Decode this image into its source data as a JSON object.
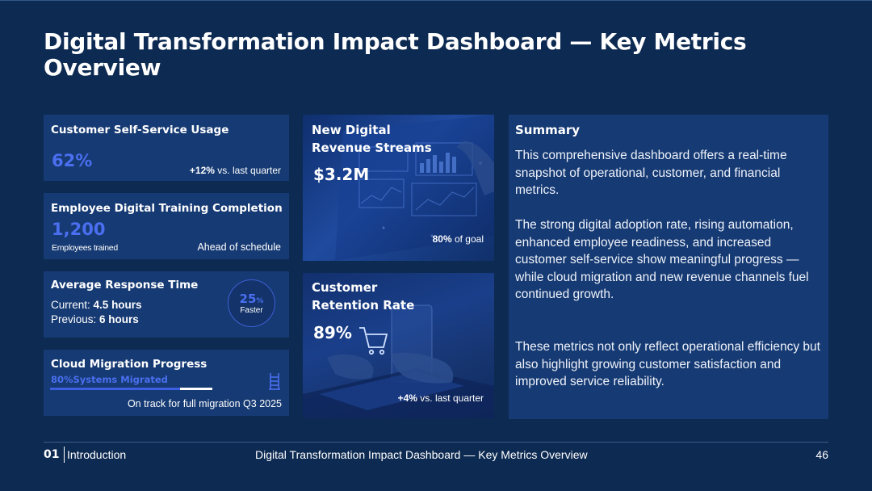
{
  "slide": {
    "title": "Digital Transformation Impact Dashboard — Key Metrics Overview"
  },
  "self_service": {
    "title": "Customer Self-Service Usage",
    "value": "62%",
    "delta_value": "+12%",
    "delta_label": "vs. last quarter"
  },
  "training": {
    "title": "Employee Digital Training Completion",
    "value": "1,200",
    "sub_label": "Employees trained",
    "status": "Ahead of schedule"
  },
  "response": {
    "title": "Average Response Time",
    "current_label": "Current:",
    "current_value": "4.5 hours",
    "previous_label": "Previous:",
    "previous_value": "6 hours",
    "improvement_number": "25",
    "improvement_unit": "%",
    "improvement_label": "Faster"
  },
  "migration": {
    "title": "Cloud Migration Progress",
    "status_label": "80%Systems Migrated",
    "progress_percent": 80,
    "note": "On track for full migration Q3 2025",
    "icon": "ladder-icon"
  },
  "revenue": {
    "title_line1": "New Digital",
    "title_line2": "Revenue Streams",
    "value": "$3.2M",
    "goal_value": "80%",
    "goal_label": "of goal"
  },
  "retention": {
    "title_line1": "Customer",
    "title_line2": "Retention Rate",
    "value": "89%",
    "delta_value": "+4%",
    "delta_label": "vs. last quarter"
  },
  "summary": {
    "title": "Summary",
    "paragraph1": "This comprehensive dashboard offers a real-time snapshot of operational, customer, and financial metrics.",
    "paragraph2": "The strong digital adoption rate, rising automation, enhanced employee readiness, and increased customer self-service show meaningful progress — while cloud migration and new revenue channels fuel continued growth.",
    "paragraph3": "These metrics not only reflect operational efficiency but also highlight growing customer satisfaction and improved service reliability."
  },
  "footer": {
    "section_number": "01",
    "section_name": "Introduction",
    "deck_title": "Digital Transformation Impact Dashboard — Key Metrics Overview",
    "page_number": "46"
  },
  "colors": {
    "background": "#0d2a52",
    "card": "#163a73",
    "accent": "#4a6ff0"
  }
}
